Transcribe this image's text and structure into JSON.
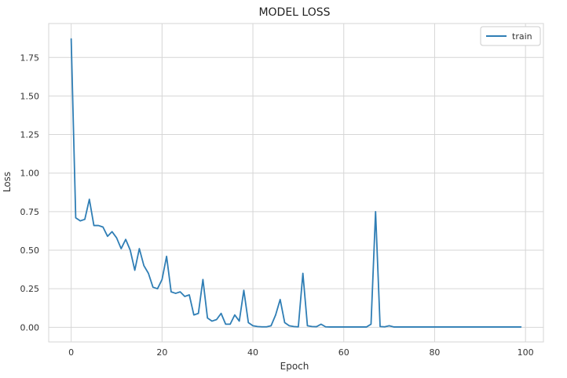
{
  "chart_data": {
    "type": "line",
    "title": "MODEL LOSS",
    "xlabel": "Epoch",
    "ylabel": "Loss",
    "xlim": [
      -4.95,
      103.95
    ],
    "ylim": [
      -0.095,
      1.97
    ],
    "xticks": [
      0,
      20,
      40,
      60,
      80,
      100
    ],
    "yticks": [
      0.0,
      0.25,
      0.5,
      0.75,
      1.0,
      1.25,
      1.5,
      1.75
    ],
    "ytick_labels": [
      "0.00",
      "0.25",
      "0.50",
      "0.75",
      "1.00",
      "1.25",
      "1.50",
      "1.75"
    ],
    "xtick_labels": [
      "0",
      "20",
      "40",
      "60",
      "80",
      "100"
    ],
    "grid": true,
    "legend_position": "top-right",
    "series": [
      {
        "name": "train",
        "color": "#2f7eb5",
        "x": [
          0,
          1,
          2,
          3,
          4,
          5,
          6,
          7,
          8,
          9,
          10,
          11,
          12,
          13,
          14,
          15,
          16,
          17,
          18,
          19,
          20,
          21,
          22,
          23,
          24,
          25,
          26,
          27,
          28,
          29,
          30,
          31,
          32,
          33,
          34,
          35,
          36,
          37,
          38,
          39,
          40,
          41,
          42,
          43,
          44,
          45,
          46,
          47,
          48,
          49,
          50,
          51,
          52,
          53,
          54,
          55,
          56,
          57,
          58,
          59,
          60,
          61,
          62,
          63,
          64,
          65,
          66,
          67,
          68,
          69,
          70,
          71,
          72,
          73,
          74,
          75,
          76,
          77,
          78,
          79,
          80,
          81,
          82,
          83,
          84,
          85,
          86,
          87,
          88,
          89,
          90,
          91,
          92,
          93,
          94,
          95,
          96,
          97,
          98,
          99
        ],
        "values": [
          1.87,
          0.71,
          0.69,
          0.7,
          0.83,
          0.66,
          0.66,
          0.65,
          0.59,
          0.62,
          0.58,
          0.51,
          0.57,
          0.5,
          0.37,
          0.51,
          0.4,
          0.35,
          0.26,
          0.25,
          0.31,
          0.46,
          0.23,
          0.22,
          0.23,
          0.2,
          0.21,
          0.08,
          0.09,
          0.31,
          0.06,
          0.04,
          0.05,
          0.09,
          0.02,
          0.02,
          0.08,
          0.04,
          0.24,
          0.03,
          0.01,
          0.005,
          0.003,
          0.003,
          0.01,
          0.08,
          0.18,
          0.03,
          0.01,
          0.005,
          0.003,
          0.35,
          0.01,
          0.005,
          0.004,
          0.02,
          0.003,
          0.002,
          0.002,
          0.002,
          0.002,
          0.002,
          0.002,
          0.002,
          0.002,
          0.002,
          0.02,
          0.75,
          0.005,
          0.003,
          0.01,
          0.002,
          0.002,
          0.002,
          0.002,
          0.002,
          0.002,
          0.002,
          0.002,
          0.002,
          0.002,
          0.002,
          0.002,
          0.002,
          0.002,
          0.002,
          0.002,
          0.002,
          0.002,
          0.002,
          0.002,
          0.002,
          0.002,
          0.002,
          0.002,
          0.002,
          0.002,
          0.002,
          0.002,
          0.002
        ]
      }
    ]
  }
}
